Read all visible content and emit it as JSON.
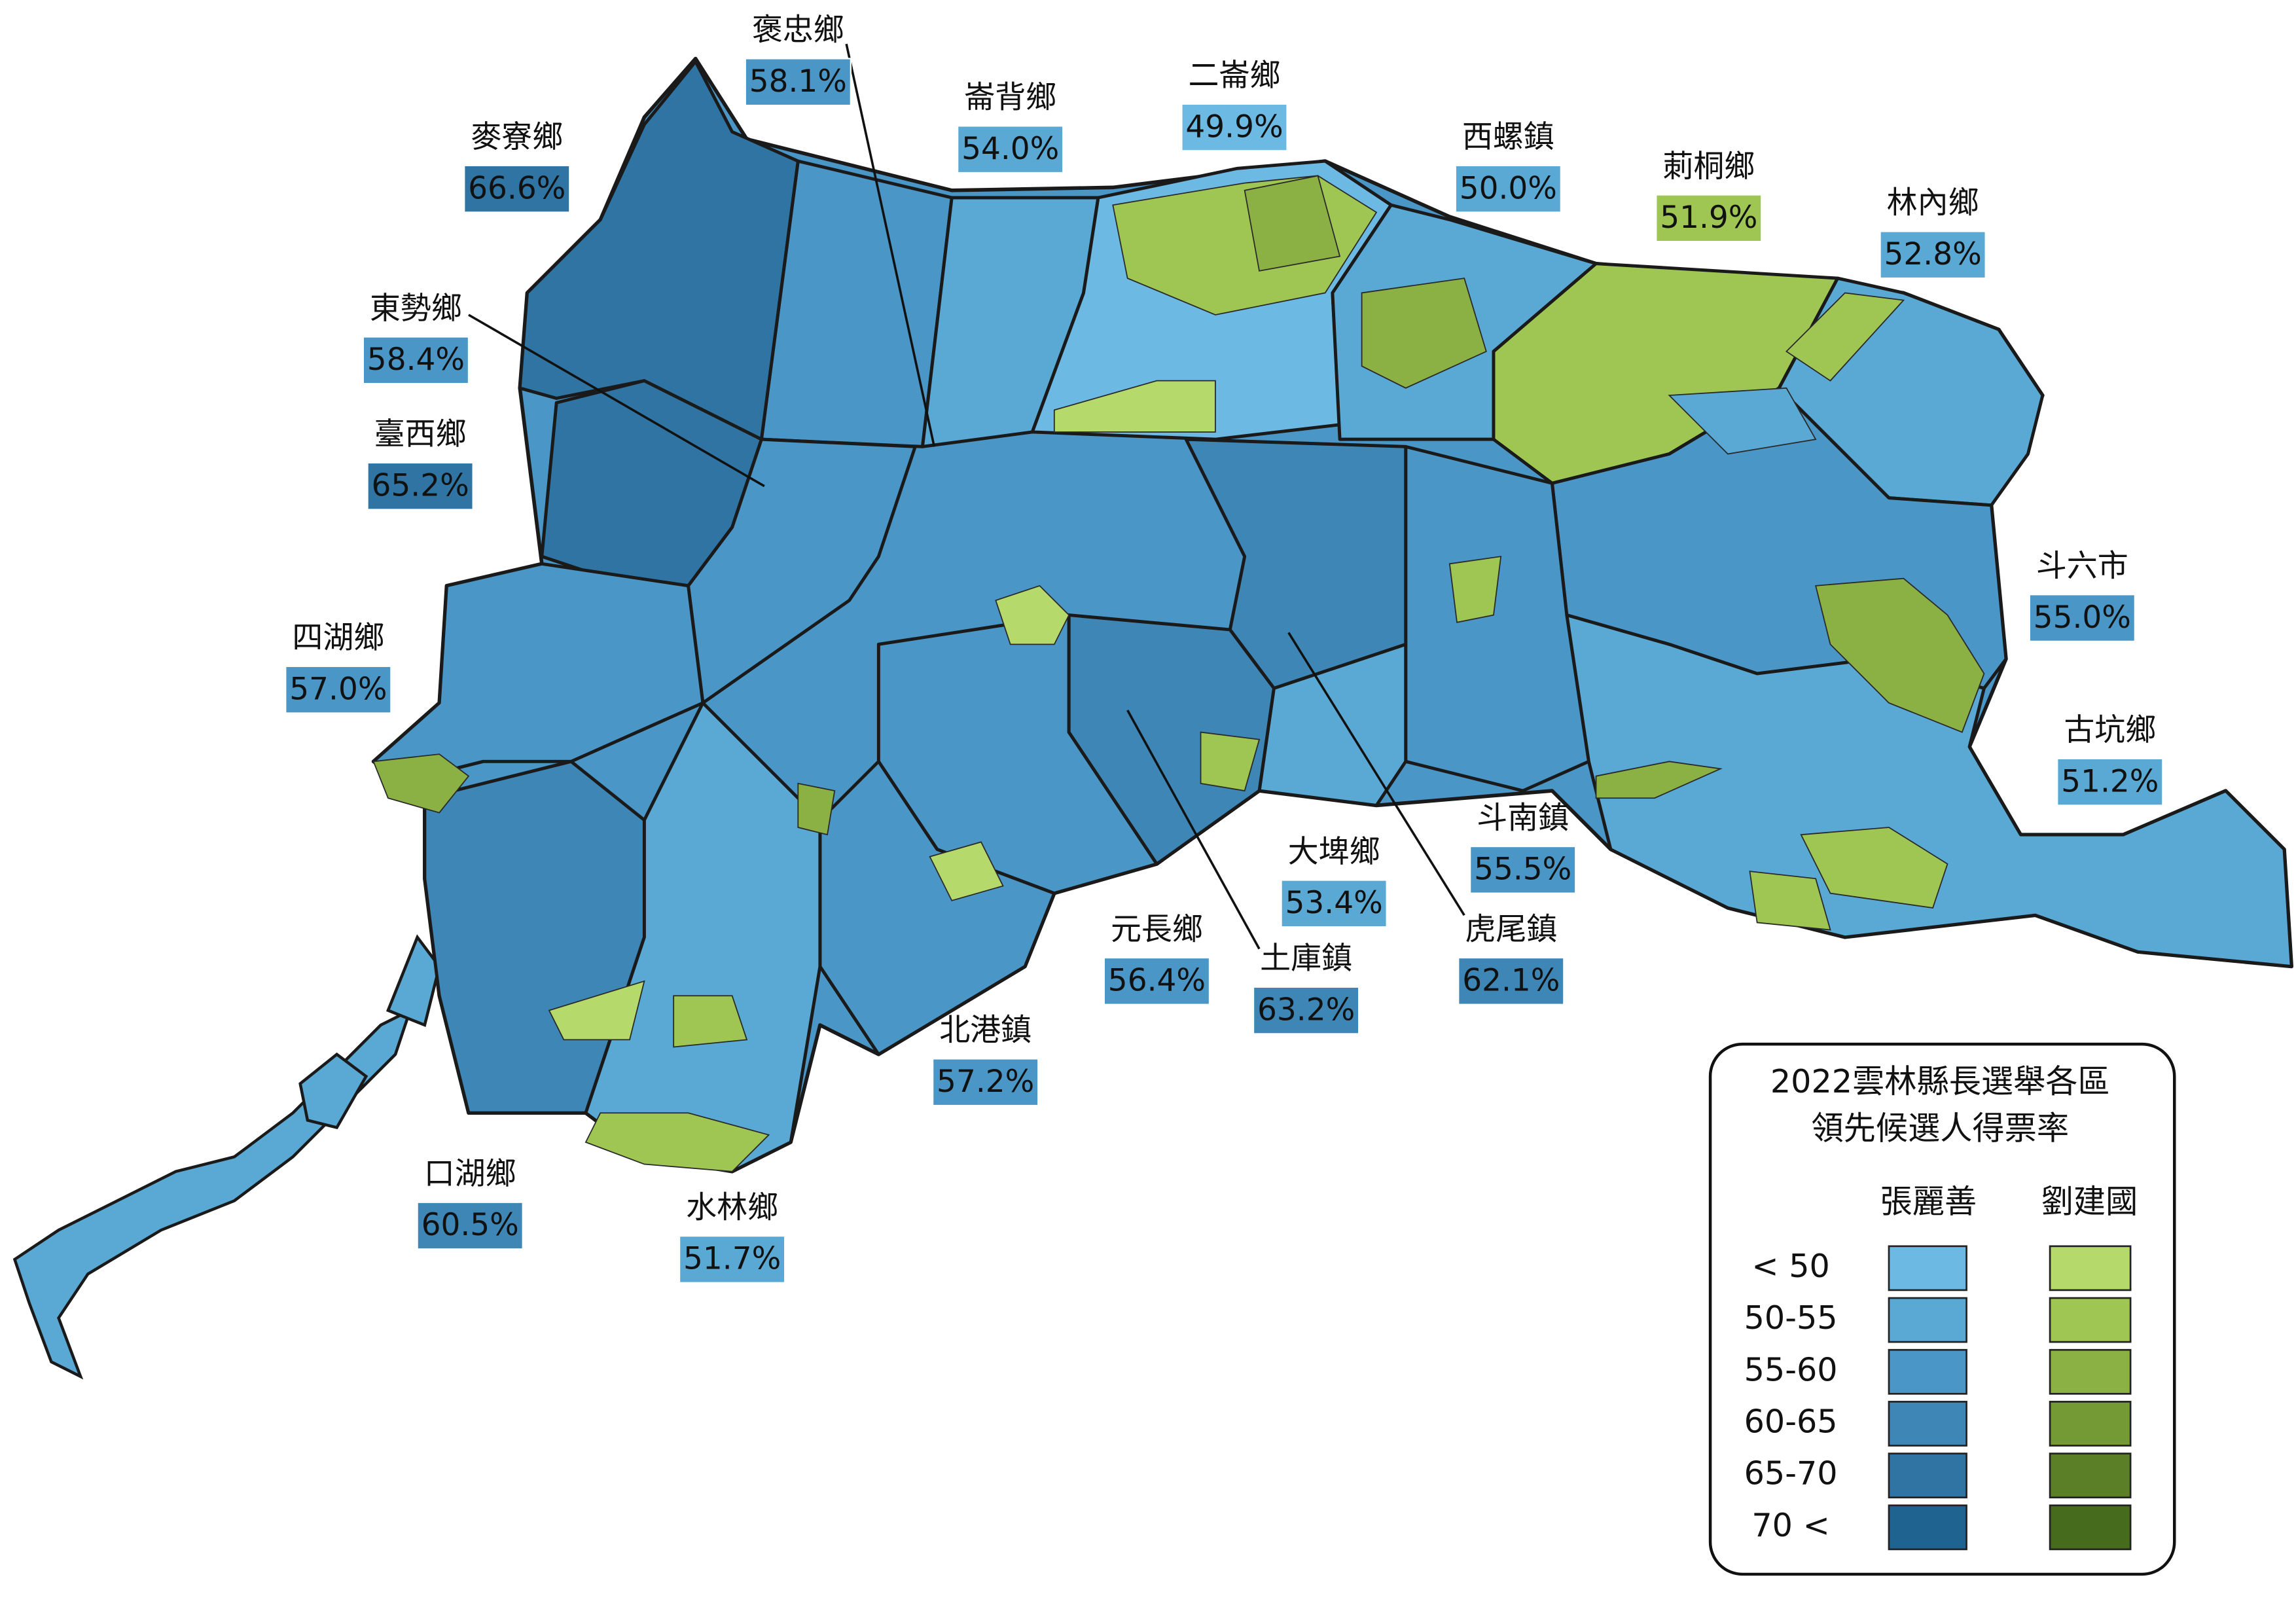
{
  "legend": {
    "title": [
      "2022雲林縣長選舉各區",
      "領先候選人得票率"
    ],
    "candidates": [
      {
        "name": "張麗善",
        "colors": [
          "#6cb9e3",
          "#5aa8d4",
          "#4a96c6",
          "#3d86b6",
          "#2f74a2",
          "#1f6391"
        ]
      },
      {
        "name": "劉建國",
        "colors": [
          "#b5d96a",
          "#9fc653",
          "#8bb043",
          "#749a36",
          "#5b7f27",
          "#466b1d"
        ]
      }
    ],
    "bins": [
      "< 50",
      "50-55",
      "55-60",
      "60-65",
      "65-70",
      "70 <"
    ]
  },
  "townships": [
    {
      "name": "褒忠鄉",
      "value": 58.1,
      "value_label": "58.1%",
      "color": "#4a96c6"
    },
    {
      "name": "崙背鄉",
      "value": 54.0,
      "value_label": "54.0%",
      "color": "#5aa8d4"
    },
    {
      "name": "二崙鄉",
      "value": 49.9,
      "value_label": "49.9%",
      "color": "#6cb9e3"
    },
    {
      "name": "西螺鎮",
      "value": 50.0,
      "value_label": "50.0%",
      "color": "#5aa8d4"
    },
    {
      "name": "莿桐鄉",
      "value": 51.9,
      "value_label": "51.9%",
      "color": "#9fc653"
    },
    {
      "name": "林內鄉",
      "value": 52.8,
      "value_label": "52.8%",
      "color": "#5aa8d4"
    },
    {
      "name": "麥寮鄉",
      "value": 66.6,
      "value_label": "66.6%",
      "color": "#2f74a2"
    },
    {
      "name": "東勢鄉",
      "value": 58.4,
      "value_label": "58.4%",
      "color": "#4a96c6"
    },
    {
      "name": "臺西鄉",
      "value": 65.2,
      "value_label": "65.2%",
      "color": "#2f74a2"
    },
    {
      "name": "斗六市",
      "value": 55.0,
      "value_label": "55.0%",
      "color": "#4a96c6"
    },
    {
      "name": "四湖鄉",
      "value": 57.0,
      "value_label": "57.0%",
      "color": "#4a96c6"
    },
    {
      "name": "古坑鄉",
      "value": 51.2,
      "value_label": "51.2%",
      "color": "#5aa8d4"
    },
    {
      "name": "斗南鎮",
      "value": 55.5,
      "value_label": "55.5%",
      "color": "#4a96c6"
    },
    {
      "name": "大埤鄉",
      "value": 53.4,
      "value_label": "53.4%",
      "color": "#5aa8d4"
    },
    {
      "name": "元長鄉",
      "value": 56.4,
      "value_label": "56.4%",
      "color": "#4a96c6"
    },
    {
      "name": "虎尾鎮",
      "value": 62.1,
      "value_label": "62.1%",
      "color": "#3d86b6"
    },
    {
      "name": "土庫鎮",
      "value": 63.2,
      "value_label": "63.2%",
      "color": "#3d86b6"
    },
    {
      "name": "北港鎮",
      "value": 57.2,
      "value_label": "57.2%",
      "color": "#4a96c6"
    },
    {
      "name": "口湖鄉",
      "value": 60.5,
      "value_label": "60.5%",
      "color": "#3d86b6"
    },
    {
      "name": "水林鄉",
      "value": 51.7,
      "value_label": "51.7%",
      "color": "#5aa8d4"
    }
  ]
}
